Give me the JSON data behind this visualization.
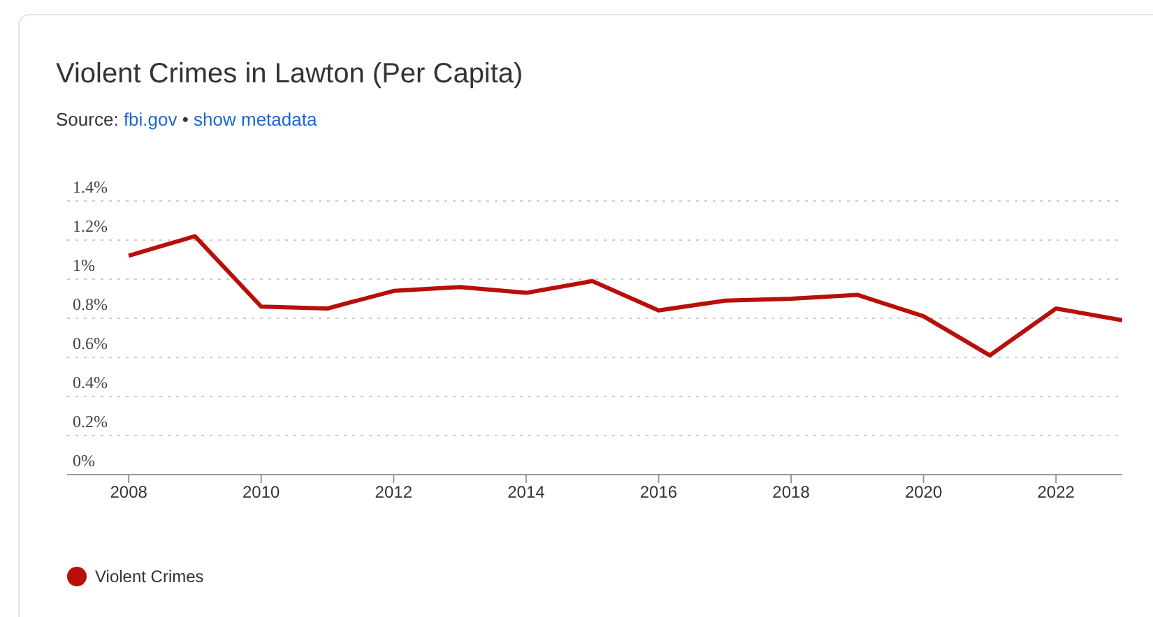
{
  "chart_data": {
    "type": "line",
    "title": "Violent Crimes in Lawton (Per Capita)",
    "subtitle": "Source: fbi.gov • show metadata",
    "x": [
      2008,
      2009,
      2010,
      2011,
      2012,
      2013,
      2014,
      2015,
      2016,
      2017,
      2018,
      2019,
      2020,
      2021,
      2022,
      2023
    ],
    "series": [
      {
        "name": "Violent Crimes",
        "color": "#b80f0a",
        "values": [
          1.12,
          1.22,
          0.86,
          0.85,
          0.94,
          0.96,
          0.93,
          0.99,
          0.84,
          0.89,
          0.9,
          0.92,
          0.81,
          0.61,
          0.85,
          0.79
        ]
      }
    ],
    "xlim": [
      2007.07,
      2023
    ],
    "xticks": [
      2008,
      2010,
      2012,
      2014,
      2016,
      2018,
      2020,
      2022
    ],
    "ylim": [
      0,
      1.4
    ],
    "yticks": [
      {
        "value": 0,
        "label": "0%"
      },
      {
        "value": 0.2,
        "label": "0.2%"
      },
      {
        "value": 0.4,
        "label": "0.4%"
      },
      {
        "value": 0.6,
        "label": "0.6%"
      },
      {
        "value": 0.8,
        "label": "0.8%"
      },
      {
        "value": 1,
        "label": "1%"
      },
      {
        "value": 1.2,
        "label": "1.2%"
      },
      {
        "value": 1.4,
        "label": "1.4%"
      }
    ],
    "grid": "y",
    "legend": "bottom left"
  }
}
